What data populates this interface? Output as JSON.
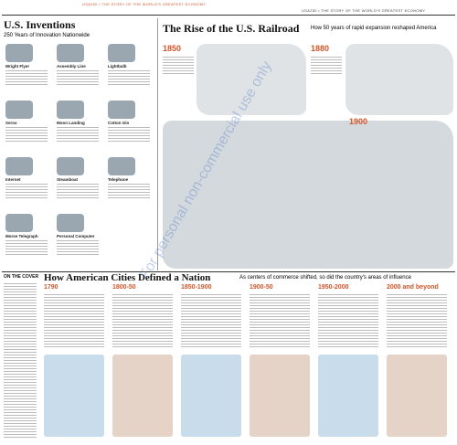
{
  "header": {
    "left": "USA250 • THE STORY OF THE WORLD'S GREATEST ECONOMY",
    "right": "USA250 • THE STORY OF THE WORLD'S GREATEST ECONOMY"
  },
  "inventions": {
    "title": "U.S. Inventions",
    "subtitle": "250 Years of Innovation Nationwide",
    "items": [
      "Wright Flyer",
      "Assembly Line",
      "Lightbulb",
      "Xerox",
      "Moon Landing",
      "Cotton Gin",
      "Internet",
      "Steamboat",
      "Telephone",
      "Morse Telegraph",
      "Personal Computer"
    ]
  },
  "railroad": {
    "title": "The Rise of the U.S. Railroad",
    "subtitle": "How 50 years of rapid expansion reshaped America",
    "maps": [
      "1850",
      "1880",
      "1900"
    ]
  },
  "cities": {
    "title": "How American Cities Defined a Nation",
    "subtitle": "As centers of commerce shifted, so did the country's areas of influence",
    "periods": [
      "1790",
      "1800-50",
      "1850-1900",
      "1900-50",
      "1950-2000",
      "2000 and beyond"
    ]
  },
  "cover": {
    "title": "ON THE COVER"
  },
  "watermark": "For personal non-commercial use only"
}
